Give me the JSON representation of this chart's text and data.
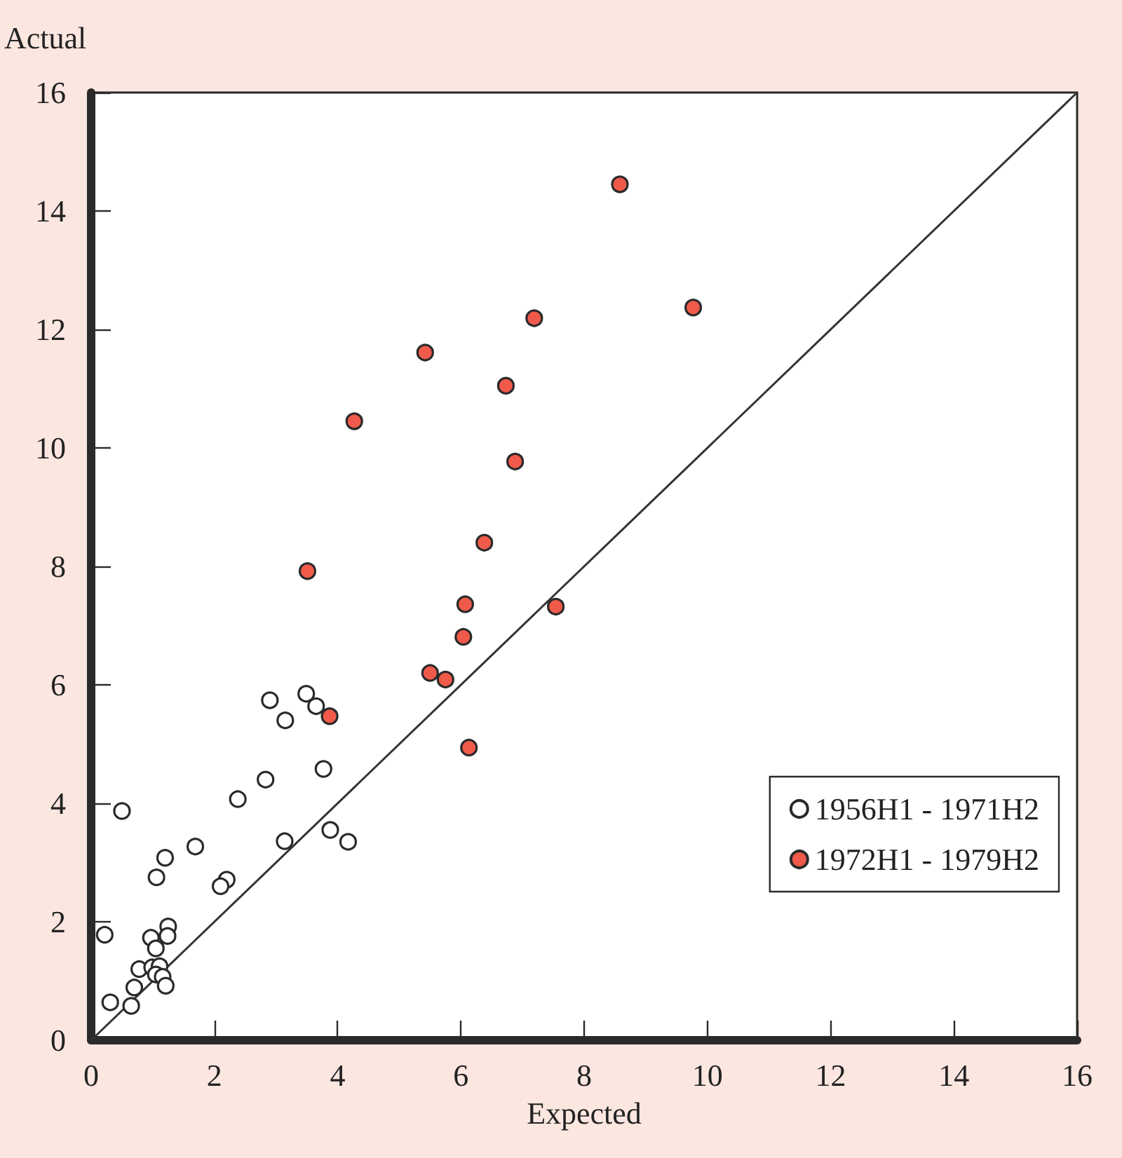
{
  "chart_data": {
    "type": "scatter",
    "xlabel": "Expected",
    "ylabel": "Actual",
    "xlim": [
      0,
      16
    ],
    "ylim": [
      0,
      16
    ],
    "xticks": [
      0,
      2,
      4,
      6,
      8,
      10,
      12,
      14,
      16
    ],
    "yticks": [
      0,
      2,
      4,
      6,
      8,
      10,
      12,
      14,
      16
    ],
    "grid": false,
    "legend": "bottom right",
    "series": [
      {
        "name": "1956H1 - 1971H2",
        "color": "#ffffff",
        "marker": "circle",
        "x": [
          2.9,
          3.49,
          3.65,
          3.15,
          3.77,
          2.83,
          2.38,
          0.5,
          3.88,
          3.14,
          4.17,
          1.69,
          1.2,
          1.06,
          2.2,
          2.1,
          1.25,
          1.24,
          0.22,
          0.97,
          1.05,
          0.78,
          0.99,
          1.11,
          1.05,
          1.16,
          1.21,
          0.7,
          0.31,
          0.65
        ],
        "values": [
          5.74,
          5.85,
          5.64,
          5.4,
          4.58,
          4.4,
          4.07,
          3.87,
          3.55,
          3.36,
          3.35,
          3.27,
          3.08,
          2.75,
          2.71,
          2.6,
          1.92,
          1.76,
          1.78,
          1.73,
          1.55,
          1.2,
          1.23,
          1.25,
          1.11,
          1.07,
          0.92,
          0.89,
          0.64,
          0.58
        ]
      },
      {
        "name": "1972H1 - 1979H2",
        "color": "#f05a4a",
        "marker": "circle",
        "x": [
          8.58,
          9.77,
          7.19,
          5.42,
          6.73,
          4.27,
          6.88,
          6.38,
          3.51,
          6.07,
          7.54,
          6.04,
          5.5,
          5.75,
          3.87,
          6.13
        ],
        "values": [
          14.45,
          12.37,
          12.19,
          11.61,
          11.05,
          10.45,
          9.77,
          8.4,
          7.92,
          7.36,
          7.32,
          6.81,
          6.2,
          6.09,
          5.47,
          4.94
        ]
      },
      {
        "type": "line",
        "color": "#333333",
        "x": [
          0,
          16
        ],
        "values": [
          0,
          16
        ],
        "marker": "none"
      }
    ]
  }
}
